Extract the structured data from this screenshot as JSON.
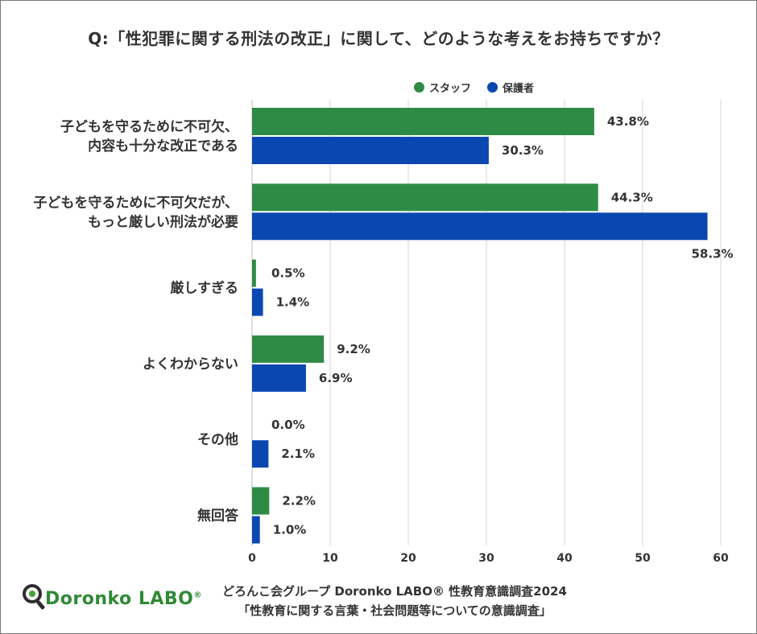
{
  "title": "Q:「性犯罪に関する刑法の改正」に関して、どのような考えをお持ちですか？",
  "legend": [
    {
      "name": "スタッフ",
      "color": "#2e8b45"
    },
    {
      "name": "保護者",
      "color": "#0b47b0"
    }
  ],
  "chart_data": {
    "type": "bar",
    "orientation": "horizontal",
    "categories": [
      [
        "子どもを守るために不可欠、",
        "内容も十分な改正である"
      ],
      [
        "子どもを守るために不可欠だが、",
        "もっと厳しい刑法が必要"
      ],
      [
        "厳しすぎる"
      ],
      [
        "よくわからない"
      ],
      [
        "その他"
      ],
      [
        "無回答"
      ]
    ],
    "series": [
      {
        "name": "スタッフ",
        "color": "#2e8b45",
        "values": [
          43.8,
          44.3,
          0.5,
          9.2,
          0.0,
          2.2
        ],
        "labels": [
          "43.8%",
          "44.3%",
          "0.5%",
          "9.2%",
          "0.0%",
          "2.2%"
        ]
      },
      {
        "name": "保護者",
        "color": "#0b47b0",
        "values": [
          30.3,
          58.3,
          1.4,
          6.9,
          2.1,
          1.0
        ],
        "labels": [
          "30.3%",
          "58.3%",
          "1.4%",
          "6.9%",
          "2.1%",
          "1.0%"
        ]
      }
    ],
    "xlim": [
      0,
      60
    ],
    "xticks": [
      0,
      10,
      20,
      30,
      40,
      50,
      60
    ],
    "xtick_labels": [
      "0",
      "10",
      "20",
      "30",
      "40",
      "50",
      "60"
    ],
    "grid": "vertical",
    "legend_position": "top-right"
  },
  "footer": {
    "line1": "どろんこ会グループ Doronko LABO® 性教育意識調査2024",
    "line2": "「性教育に関する言葉・社会問題等についての意識調査」"
  },
  "logo": {
    "text": "Doronko LABO",
    "mark": "®"
  }
}
